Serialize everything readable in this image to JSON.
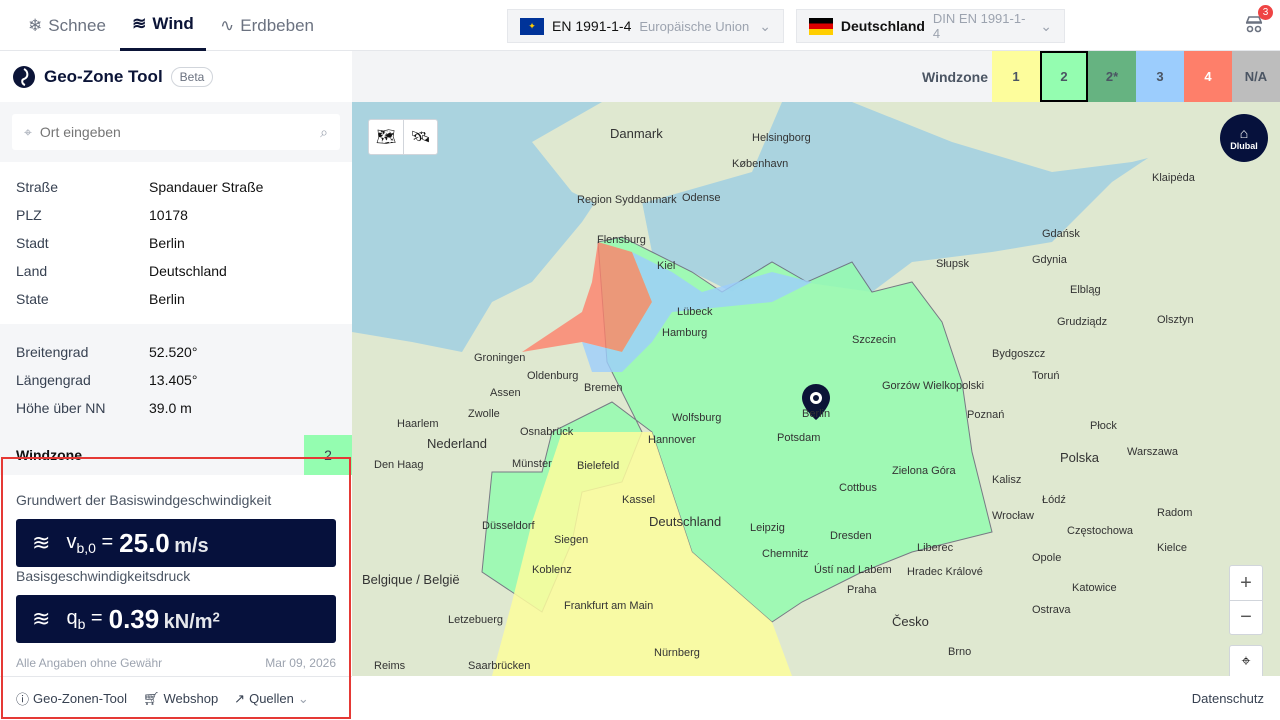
{
  "nav": {
    "tabs": [
      {
        "label": "Schnee",
        "icon": "snowflake-icon"
      },
      {
        "label": "Wind",
        "icon": "wind-icon",
        "active": true
      },
      {
        "label": "Erdbeben",
        "icon": "pulse-icon"
      }
    ]
  },
  "selectors": {
    "norm": {
      "label": "EN 1991-1-4",
      "sub": "Europäische Union"
    },
    "country": {
      "label": "Deutschland",
      "sub": "DIN EN 1991-1-4"
    }
  },
  "cart": {
    "count": "3"
  },
  "brand": {
    "name": "Geo-Zone Tool",
    "badge": "Beta"
  },
  "search": {
    "placeholder": "Ort eingeben"
  },
  "address": [
    {
      "k": "Straße",
      "v": "Spandauer Straße"
    },
    {
      "k": "PLZ",
      "v": "10178"
    },
    {
      "k": "Stadt",
      "v": "Berlin"
    },
    {
      "k": "Land",
      "v": "Deutschland"
    },
    {
      "k": "State",
      "v": "Berlin"
    }
  ],
  "coords": [
    {
      "k": "Breitengrad",
      "v": "52.520°"
    },
    {
      "k": "Längengrad",
      "v": "13.405°"
    },
    {
      "k": "Höhe über NN",
      "v": "39.0 m"
    }
  ],
  "windzone": {
    "label": "Windzone",
    "value": "2",
    "color": "#94fdb0"
  },
  "results": {
    "vb_label": "Grundwert der Basiswindgeschwindigkeit",
    "vb_symbol": "v",
    "vb_sub": "b,0",
    "vb_value": "25.0",
    "vb_unit": "m/s",
    "qb_label": "Basisgeschwindigkeitsdruck",
    "qb_symbol": "q",
    "qb_sub": "b",
    "qb_value": "0.39",
    "qb_unit": "kN/m",
    "qb_exp": "2",
    "eq": "="
  },
  "disclaimer": "Alle Angaben ohne Gewähr",
  "date": "Mar 09, 2026",
  "links": [
    {
      "label": "Geo-Zonen-Tool"
    },
    {
      "label": "Webshop"
    },
    {
      "label": "Quellen"
    }
  ],
  "legend": {
    "title": "Windzone",
    "zones": [
      {
        "label": "1",
        "color": "#fdfd9c"
      },
      {
        "label": "2",
        "color": "#94fdb0",
        "selected": true
      },
      {
        "label": "2*",
        "color": "#66b381"
      },
      {
        "label": "3",
        "color": "#9ccdfd"
      },
      {
        "label": "4",
        "color": "#fe7f6a"
      },
      {
        "label": "N/A",
        "color": "#bdbdbd"
      }
    ]
  },
  "map": {
    "logo": "Dlubal",
    "labels": [
      "Danmark",
      "Helsingborg",
      "København",
      "Odense",
      "Region Syddanmark",
      "Flensburg",
      "Kiel",
      "Lübeck",
      "Hamburg",
      "Bremen",
      "Groningen",
      "Oldenburg",
      "Assen",
      "Zwolle",
      "Haarlem",
      "Nederland",
      "Den Haag",
      "Hannover",
      "Wolfsburg",
      "Berlin",
      "Potsdam",
      "Osnabrück",
      "Münster",
      "Bielefeld",
      "Kassel",
      "Leipzig",
      "Cottbus",
      "Düsseldorf",
      "Siegen",
      "Deutschland",
      "Dresden",
      "Chemnitz",
      "Koblenz",
      "Frankfurt am Main",
      "Nürnberg",
      "Letzebuerg",
      "Belgique / België",
      "Reims",
      "Saarbrücken",
      "Praha",
      "Česko",
      "Brno",
      "Katowice",
      "Wrocław",
      "Poznań",
      "Polska",
      "Warszawa",
      "Łódź",
      "Gdańsk",
      "Gdynia",
      "Słupsk",
      "Szczecin",
      "Bydgoszcz",
      "Toruń",
      "Płock",
      "Kalisz",
      "Opole",
      "Kielce",
      "Radom",
      "Częstochowa",
      "Klaipėda",
      "Elbląg",
      "Olsztyn",
      "Grudziądz",
      "Gorzów Wielkopolski",
      "Zielona Góra",
      "Ústí nad Labem",
      "Liberec",
      "Hradec Králové",
      "Ostrava"
    ],
    "footer": "Datenschutz",
    "zoom_in": "+",
    "zoom_out": "−"
  }
}
